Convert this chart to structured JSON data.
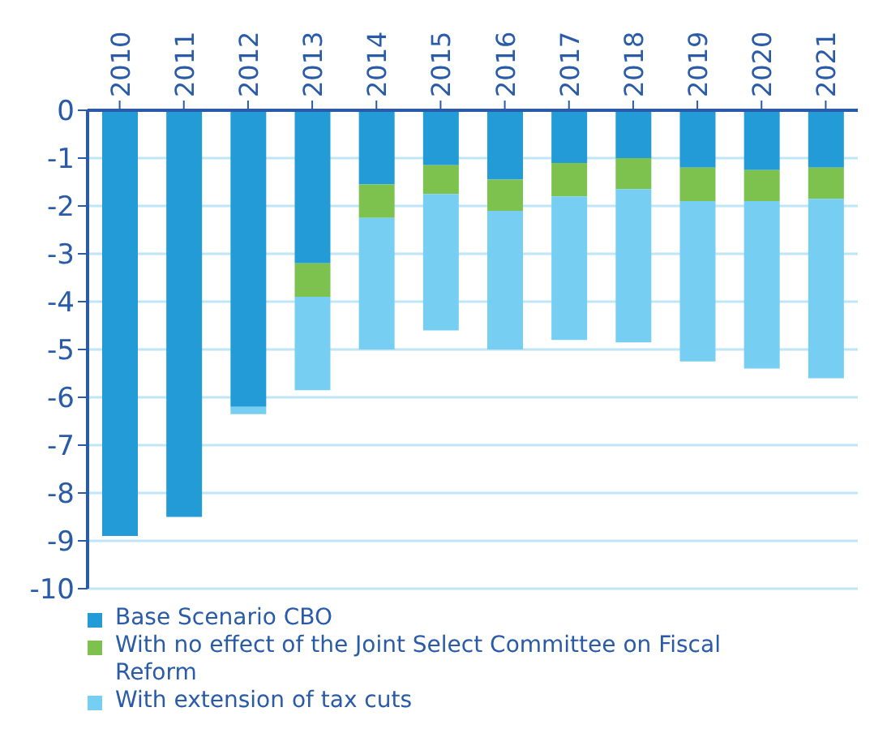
{
  "chart_data": {
    "type": "bar",
    "stacked": true,
    "categories": [
      "2010",
      "2011",
      "2012",
      "2013",
      "2014",
      "2015",
      "2016",
      "2017",
      "2018",
      "2019",
      "2020",
      "2021"
    ],
    "series": [
      {
        "name": "Base Scenario CBO",
        "color": "#239bd6",
        "values": [
          -8.9,
          -8.5,
          -6.2,
          -3.2,
          -1.55,
          -1.15,
          -1.45,
          -1.1,
          -1.0,
          -1.2,
          -1.25,
          -1.2
        ]
      },
      {
        "name": "With no effect of the Joint Select Committee on Fiscal Reform",
        "color": "#7dc14e",
        "values": [
          null,
          null,
          null,
          -0.7,
          -0.7,
          -0.6,
          -0.65,
          -0.7,
          -0.65,
          -0.7,
          -0.65,
          -0.65
        ]
      },
      {
        "name": "With extension of tax cuts",
        "color": "#76cff3",
        "values": [
          null,
          null,
          -0.15,
          -1.95,
          -2.75,
          -2.85,
          -2.9,
          -3.0,
          -3.2,
          -3.35,
          -3.5,
          -3.75
        ]
      }
    ],
    "ylim": [
      -10,
      0
    ],
    "yticks": [
      0,
      -1,
      -2,
      -3,
      -4,
      -5,
      -6,
      -7,
      -8,
      -9,
      -10
    ],
    "grid": "y",
    "legend": "bottom"
  }
}
